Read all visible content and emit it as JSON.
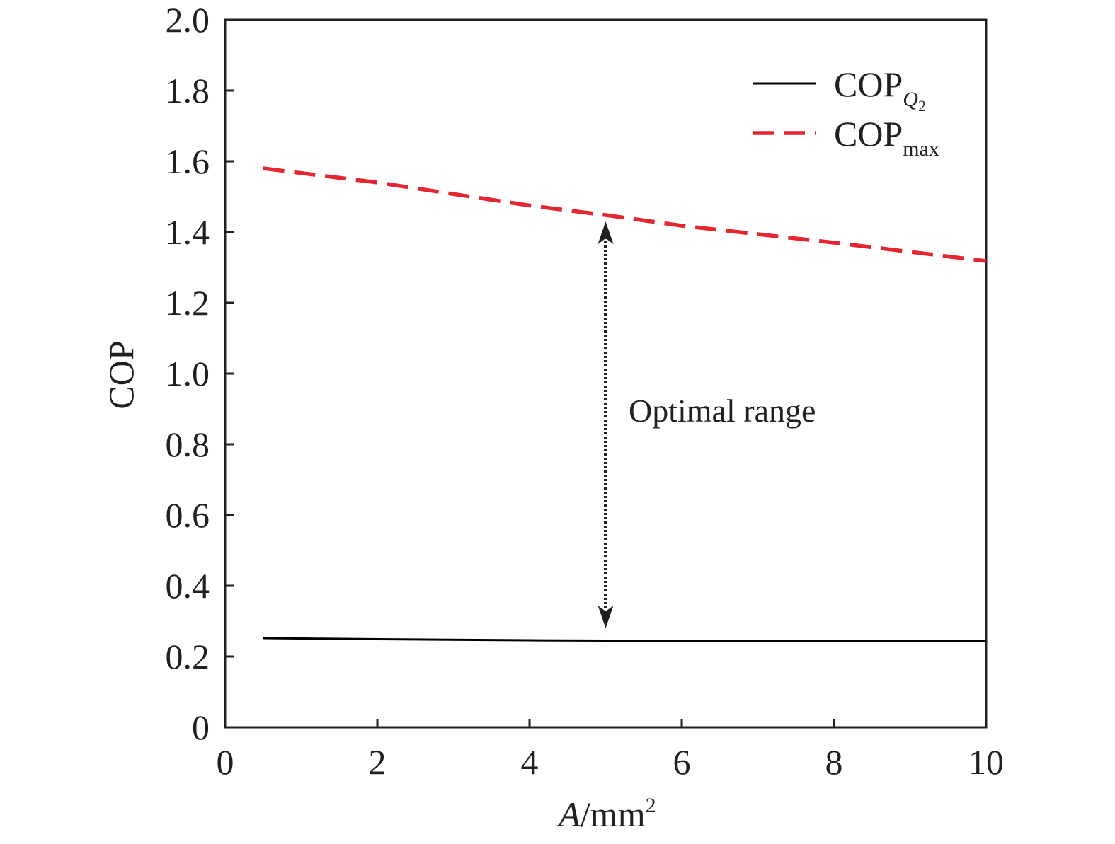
{
  "chart_data": {
    "type": "line",
    "xlabel": {
      "var": "A",
      "unit": "/mm",
      "sup": "2"
    },
    "ylabel": "COP",
    "xlim": [
      0,
      10
    ],
    "ylim": [
      0,
      2.0
    ],
    "x_ticks": [
      0,
      2,
      4,
      6,
      8,
      10
    ],
    "x_tick_labels": [
      "0",
      "2",
      "4",
      "6",
      "8",
      "10"
    ],
    "y_ticks": [
      0,
      0.2,
      0.4,
      0.6,
      0.8,
      1.0,
      1.2,
      1.4,
      1.6,
      1.8,
      2.0
    ],
    "y_tick_labels": [
      "0",
      "0.2",
      "0.4",
      "0.6",
      "0.8",
      "1.0",
      "1.2",
      "1.4",
      "1.6",
      "1.8",
      "2.0"
    ],
    "grid": false,
    "legend_position": "top-right",
    "series": [
      {
        "name": "COP",
        "name_sub": "Q",
        "name_sub2": "2",
        "style": "solid",
        "color": "#000000",
        "x": [
          0.5,
          2,
          4,
          5,
          6,
          8,
          10
        ],
        "y": [
          0.252,
          0.249,
          0.246,
          0.245,
          0.245,
          0.244,
          0.243
        ]
      },
      {
        "name": "COP",
        "name_sub": "max",
        "style": "dashed",
        "color": "#e5252f",
        "x": [
          0.5,
          2,
          4,
          5,
          6,
          8,
          10
        ],
        "y": [
          1.58,
          1.54,
          1.475,
          1.448,
          1.418,
          1.37,
          1.318
        ]
      }
    ],
    "annotations": [
      {
        "text": "Optimal range",
        "arrow_x": 5,
        "arrow_y_from": 0.28,
        "arrow_y_to": 1.43
      }
    ]
  }
}
